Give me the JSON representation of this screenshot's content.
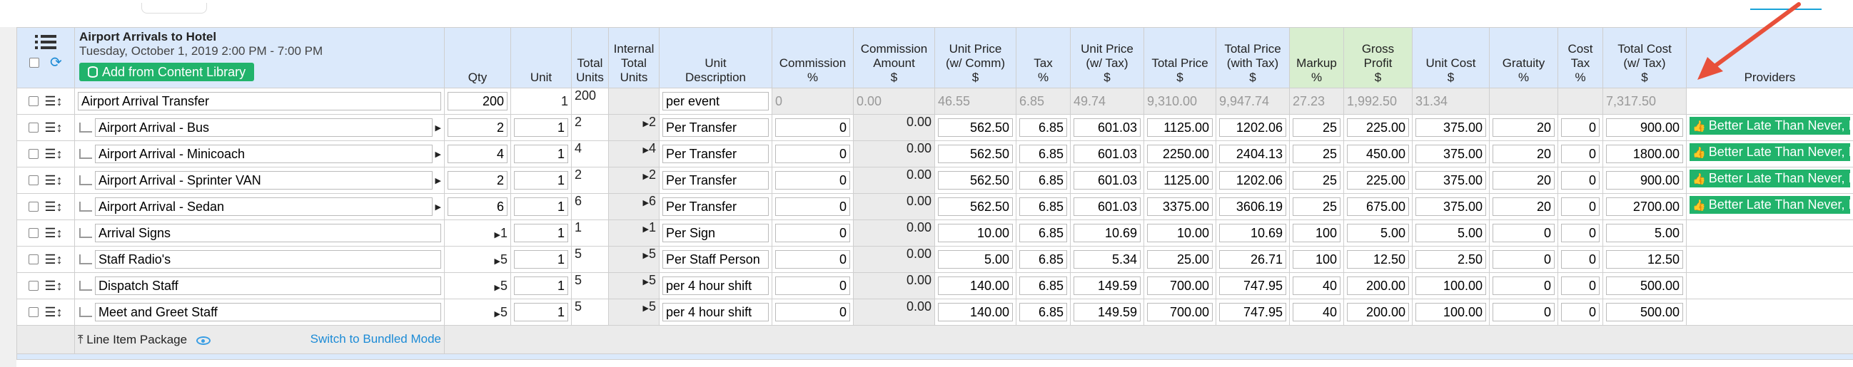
{
  "header": {
    "job_title": "Airport Arrivals to Hotel",
    "job_date": "Tuesday, October 1, 2019 2:00 PM - 7:00 PM",
    "add_button": "Add from Content Library",
    "columns": {
      "qty": "Qty",
      "unit": "Unit",
      "total_units": [
        "Total",
        "Units"
      ],
      "internal_total_units": [
        "Internal",
        "Total",
        "Units"
      ],
      "unit_description": [
        "Unit",
        "Description"
      ],
      "commission_pct": [
        "Commission",
        "%"
      ],
      "commission_amount": [
        "Commission",
        "Amount",
        "$"
      ],
      "unit_price_comm": [
        "Unit Price",
        "(w/ Comm)",
        "$"
      ],
      "tax": [
        "Tax",
        "%"
      ],
      "unit_price_tax": [
        "Unit Price",
        "(w/ Tax)",
        "$"
      ],
      "total_price": [
        "Total Price",
        "$"
      ],
      "total_price_tax": [
        "Total Price",
        "(with Tax)",
        "$"
      ],
      "markup": [
        "Markup",
        "%"
      ],
      "gross_profit": [
        "Gross",
        "Profit",
        "$"
      ],
      "unit_cost": [
        "Unit Cost",
        "$"
      ],
      "gratuity": [
        "Gratuity",
        "%"
      ],
      "cost_tax": [
        "Cost",
        "Tax",
        "%"
      ],
      "total_cost_tax": [
        "Total Cost",
        "(w/ Tax)",
        "$"
      ],
      "providers": "Providers"
    }
  },
  "parent": {
    "name": "Airport Arrival Transfer",
    "qty": "200",
    "unit": "1",
    "total_units": "200",
    "unit_description": "per event",
    "commission_pct": "0",
    "commission_amount": "0.00",
    "unit_price_comm": "46.55",
    "tax": "6.85",
    "unit_price_tax": "49.74",
    "total_price": "9,310.00",
    "total_price_tax": "9,947.74",
    "markup": "27.23",
    "gross_profit": "1,992.50",
    "unit_cost": "31.34",
    "gratuity": "",
    "cost_tax": "",
    "total_cost_tax": "7,317.50"
  },
  "rows": [
    {
      "name": "Airport Arrival - Bus",
      "qty_lead": "",
      "qty": "2",
      "unit": "1",
      "total_units": "2",
      "internal": "2",
      "desc": "Per Transfer",
      "comm": "0",
      "comm_amt": "0.00",
      "up_comm": "562.50",
      "tax": "6.85",
      "up_tax": "601.03",
      "total": "1125.00",
      "total_tax": "1202.06",
      "markup": "25",
      "profit": "225.00",
      "ucost": "375.00",
      "grat": "20",
      "ctax": "0",
      "tcost": "900.00",
      "provider": "Better Late Than Never, Inc."
    },
    {
      "name": "Airport Arrival - Minicoach",
      "qty_lead": "",
      "qty": "4",
      "unit": "1",
      "total_units": "4",
      "internal": "4",
      "desc": "Per Transfer",
      "comm": "0",
      "comm_amt": "0.00",
      "up_comm": "562.50",
      "tax": "6.85",
      "up_tax": "601.03",
      "total": "2250.00",
      "total_tax": "2404.13",
      "markup": "25",
      "profit": "450.00",
      "ucost": "375.00",
      "grat": "20",
      "ctax": "0",
      "tcost": "1800.00",
      "provider": "Better Late Than Never, Inc."
    },
    {
      "name": "Airport Arrival - Sprinter VAN",
      "qty_lead": "",
      "qty": "2",
      "unit": "1",
      "total_units": "2",
      "internal": "2",
      "desc": "Per Transfer",
      "comm": "0",
      "comm_amt": "0.00",
      "up_comm": "562.50",
      "tax": "6.85",
      "up_tax": "601.03",
      "total": "1125.00",
      "total_tax": "1202.06",
      "markup": "25",
      "profit": "225.00",
      "ucost": "375.00",
      "grat": "20",
      "ctax": "0",
      "tcost": "900.00",
      "provider": "Better Late Than Never, Inc."
    },
    {
      "name": "Airport Arrival - Sedan",
      "qty_lead": "",
      "qty": "6",
      "unit": "1",
      "total_units": "6",
      "internal": "6",
      "desc": "Per Transfer",
      "comm": "0",
      "comm_amt": "0.00",
      "up_comm": "562.50",
      "tax": "6.85",
      "up_tax": "601.03",
      "total": "3375.00",
      "total_tax": "3606.19",
      "markup": "25",
      "profit": "675.00",
      "ucost": "375.00",
      "grat": "20",
      "ctax": "0",
      "tcost": "2700.00",
      "provider": "Better Late Than Never, Inc."
    },
    {
      "name": "Arrival Signs",
      "qty_lead": "1",
      "qty": "",
      "unit": "1",
      "total_units": "1",
      "internal": "1",
      "desc": "Per Sign",
      "comm": "0",
      "comm_amt": "0.00",
      "up_comm": "10.00",
      "tax": "6.85",
      "up_tax": "10.69",
      "total": "10.00",
      "total_tax": "10.69",
      "markup": "100",
      "profit": "5.00",
      "ucost": "5.00",
      "grat": "0",
      "ctax": "0",
      "tcost": "5.00",
      "provider": ""
    },
    {
      "name": "Staff Radio's",
      "qty_lead": "5",
      "qty": "",
      "unit": "1",
      "total_units": "5",
      "internal": "5",
      "desc": "Per Staff Person",
      "comm": "0",
      "comm_amt": "0.00",
      "up_comm": "5.00",
      "tax": "6.85",
      "up_tax": "5.34",
      "total": "25.00",
      "total_tax": "26.71",
      "markup": "100",
      "profit": "12.50",
      "ucost": "2.50",
      "grat": "0",
      "ctax": "0",
      "tcost": "12.50",
      "provider": ""
    },
    {
      "name": "Dispatch Staff",
      "qty_lead": "5",
      "qty": "",
      "unit": "1",
      "total_units": "5",
      "internal": "5",
      "desc": "per 4 hour shift",
      "comm": "0",
      "comm_amt": "0.00",
      "up_comm": "140.00",
      "tax": "6.85",
      "up_tax": "149.59",
      "total": "700.00",
      "total_tax": "747.95",
      "markup": "40",
      "profit": "200.00",
      "ucost": "100.00",
      "grat": "0",
      "ctax": "0",
      "tcost": "500.00",
      "provider": ""
    },
    {
      "name": "Meet and Greet Staff",
      "qty_lead": "5",
      "qty": "",
      "unit": "1",
      "total_units": "5",
      "internal": "5",
      "desc": "per 4 hour shift",
      "comm": "0",
      "comm_amt": "0.00",
      "up_comm": "140.00",
      "tax": "6.85",
      "up_tax": "149.59",
      "total": "700.00",
      "total_tax": "747.95",
      "markup": "40",
      "profit": "200.00",
      "ucost": "100.00",
      "grat": "0",
      "ctax": "0",
      "tcost": "500.00",
      "provider": ""
    }
  ],
  "footer": {
    "package_label": "Line Item Package",
    "switch_label": "Switch to Bundled Mode"
  },
  "colors": {
    "accent_green": "#21b36b",
    "header_blue": "#dbe9fb",
    "header_green": "#d8eecf",
    "annotation_arrow": "#e8503a"
  }
}
